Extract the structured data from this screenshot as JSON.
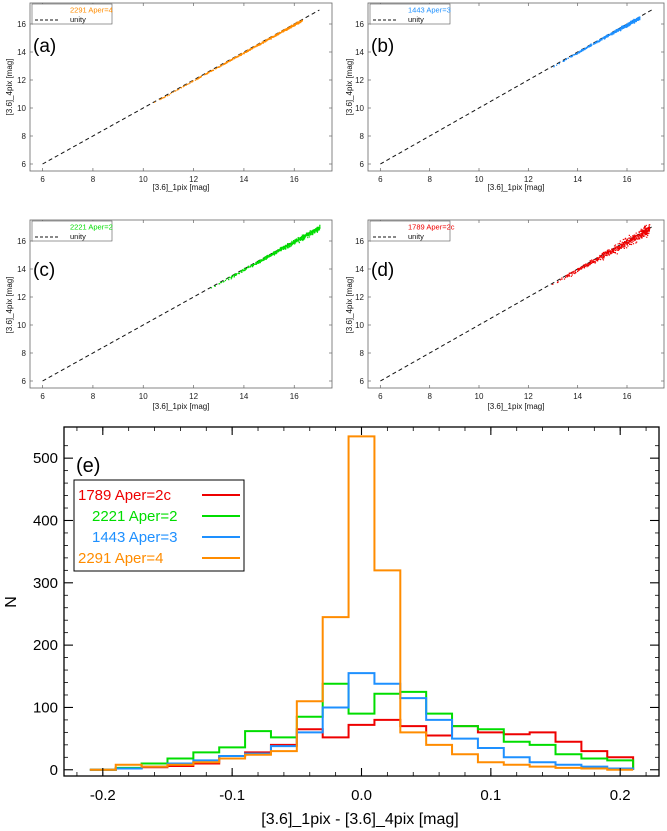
{
  "chart_data": [
    {
      "id": "a",
      "type": "scatter",
      "panel_label": "(a)",
      "xlabel": "[3.6]_1pix [mag]",
      "ylabel": "[3.6]_4pix [mag]",
      "xlim": [
        5.5,
        17.5
      ],
      "ylim": [
        5.5,
        17.5
      ],
      "xticks": [
        6,
        8,
        10,
        12,
        14,
        16
      ],
      "yticks": [
        6,
        8,
        10,
        12,
        14,
        16
      ],
      "series_name": "2291 Aper=4",
      "color": "#ff8c00",
      "unity_label": "unity",
      "point_range": [
        10.2,
        16.3
      ],
      "scatter_spread": 0.03
    },
    {
      "id": "b",
      "type": "scatter",
      "panel_label": "(b)",
      "xlabel": "[3.6]_1pix [mag]",
      "ylabel": "[3.6]_4pix [mag]",
      "xlim": [
        5.5,
        17.5
      ],
      "ylim": [
        5.5,
        17.5
      ],
      "xticks": [
        6,
        8,
        10,
        12,
        14,
        16
      ],
      "yticks": [
        6,
        8,
        10,
        12,
        14,
        16
      ],
      "series_name": "1443 Aper=3",
      "color": "#1e90ff",
      "unity_label": "unity",
      "point_range": [
        12.8,
        16.5
      ],
      "scatter_spread": 0.05
    },
    {
      "id": "c",
      "type": "scatter",
      "panel_label": "(c)",
      "xlabel": "[3.6]_1pix [mag]",
      "ylabel": "[3.6]_4pix [mag]",
      "xlim": [
        5.5,
        17.5
      ],
      "ylim": [
        5.5,
        17.5
      ],
      "xticks": [
        6,
        8,
        10,
        12,
        14,
        16
      ],
      "yticks": [
        6,
        8,
        10,
        12,
        14,
        16
      ],
      "series_name": "2221 Aper=2",
      "color": "#00dd00",
      "unity_label": "unity",
      "point_range": [
        12.5,
        17.0
      ],
      "scatter_spread": 0.08
    },
    {
      "id": "d",
      "type": "scatter",
      "panel_label": "(d)",
      "xlabel": "[3.6]_1pix [mag]",
      "ylabel": "[3.6]_4pix [mag]",
      "xlim": [
        5.5,
        17.5
      ],
      "ylim": [
        5.5,
        17.5
      ],
      "xticks": [
        6,
        8,
        10,
        12,
        14,
        16
      ],
      "yticks": [
        6,
        8,
        10,
        12,
        14,
        16
      ],
      "series_name": "1789 Aper=2c",
      "color": "#ee0000",
      "unity_label": "unity",
      "point_range": [
        12.8,
        16.9
      ],
      "scatter_spread": 0.16
    },
    {
      "id": "e",
      "type": "line",
      "style": "histogram-step",
      "panel_label": "(e)",
      "xlabel": "[3.6]_1pix - [3.6]_4pix [mag]",
      "ylabel": "N",
      "xlim": [
        -0.23,
        0.23
      ],
      "ylim": [
        -10,
        550
      ],
      "xticks": [
        -0.2,
        -0.1,
        0.0,
        0.1,
        0.2
      ],
      "xtick_labels": [
        "-0.2",
        "-0.1",
        "0.0",
        "0.1",
        "0.2"
      ],
      "yticks": [
        0,
        100,
        200,
        300,
        400,
        500
      ],
      "bin_edges": [
        -0.21,
        -0.19,
        -0.17,
        -0.15,
        -0.13,
        -0.11,
        -0.09,
        -0.07,
        -0.05,
        -0.03,
        -0.01,
        0.01,
        0.03,
        0.05,
        0.07,
        0.09,
        0.11,
        0.13,
        0.15,
        0.17,
        0.19,
        0.21
      ],
      "series": [
        {
          "name": "1789 Aper=2c",
          "color": "#ee0000",
          "values": [
            0,
            2,
            4,
            6,
            10,
            22,
            28,
            40,
            65,
            52,
            72,
            80,
            70,
            55,
            70,
            60,
            57,
            60,
            45,
            30,
            20
          ]
        },
        {
          "name": "2221 Aper=2",
          "color": "#00dd00",
          "values": [
            0,
            3,
            10,
            18,
            28,
            36,
            62,
            52,
            85,
            138,
            90,
            122,
            125,
            90,
            70,
            65,
            45,
            40,
            25,
            18,
            15
          ]
        },
        {
          "name": "1443 Aper=3",
          "color": "#1e90ff",
          "values": [
            0,
            2,
            5,
            10,
            15,
            22,
            26,
            38,
            60,
            100,
            155,
            138,
            115,
            80,
            50,
            35,
            20,
            12,
            8,
            5,
            2
          ]
        },
        {
          "name": "2291 Aper=4",
          "color": "#ff8c00",
          "values": [
            0,
            8,
            5,
            8,
            12,
            18,
            24,
            30,
            110,
            245,
            535,
            320,
            60,
            40,
            25,
            12,
            8,
            5,
            3,
            2,
            0
          ]
        }
      ]
    }
  ]
}
